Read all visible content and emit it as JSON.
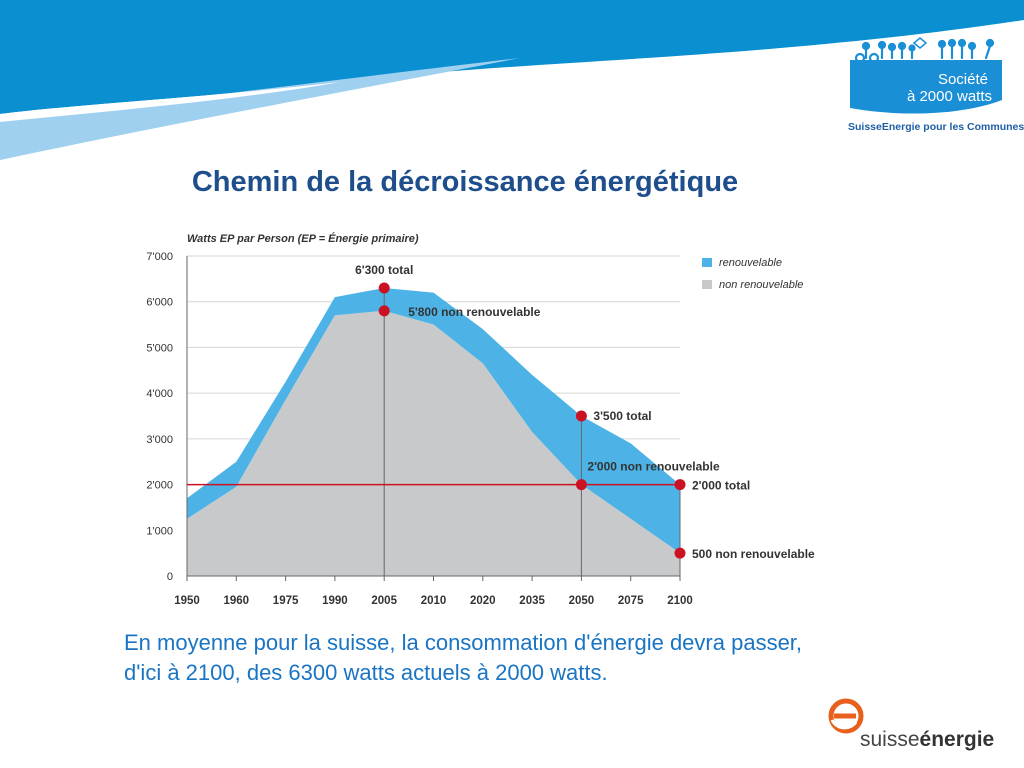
{
  "slide": {
    "title": "Chemin de la décroissance énergétique",
    "caption": "En moyenne pour la suisse, la consommation d'énergie devra passer, d'ici à 2100, des 6300 watts actuels à 2000 watts."
  },
  "logo_top": {
    "line1": "Société",
    "line2": "à 2000 watts",
    "subtitle": "SuisseEnergie pour les Communes"
  },
  "logo_bottom": {
    "part1": "suisse",
    "part2": "énergie"
  },
  "colors": {
    "renewable": "#4db3e6",
    "non_renewable": "#c8c9cb",
    "target_line": "#cc1122",
    "marker": "#cc1122",
    "title": "#1f4e8c",
    "caption": "#1a74c4"
  },
  "chart_data": {
    "type": "area",
    "title": "Watts EP par Person (EP = Énergie primaire)",
    "xlabel": "",
    "ylabel": "",
    "categories": [
      "1950",
      "1960",
      "1975",
      "1990",
      "2005",
      "2010",
      "2020",
      "2035",
      "2050",
      "2075",
      "2100"
    ],
    "ylim": [
      0,
      7000
    ],
    "yticks": [
      "0",
      "1'000",
      "2'000",
      "3'000",
      "4'000",
      "5'000",
      "6'000",
      "7'000"
    ],
    "series": [
      {
        "name": "non renouvelable",
        "values": [
          1250,
          1950,
          3850,
          5700,
          5800,
          5500,
          4650,
          3150,
          2000,
          1250,
          500
        ]
      },
      {
        "name": "renouvelable",
        "values": [
          450,
          550,
          400,
          400,
          500,
          700,
          750,
          1250,
          1500,
          1650,
          1500
        ]
      }
    ],
    "totals": [
      1700,
      2500,
      4250,
      6100,
      6300,
      6200,
      5400,
      4400,
      3500,
      2900,
      2000
    ],
    "legend_position": "top-right",
    "grid": true,
    "reference_line": {
      "y": 2000
    },
    "vertical_markers": [
      "2005",
      "2050",
      "2100"
    ],
    "annotations": [
      {
        "x": "2005",
        "y": 6300,
        "label": "6'300 total"
      },
      {
        "x": "2005",
        "y": 5800,
        "label": "5'800 non renouvelable"
      },
      {
        "x": "2050",
        "y": 3500,
        "label": "3'500 total"
      },
      {
        "x": "2050",
        "y": 2000,
        "label": "2'000 non renouvelable"
      },
      {
        "x": "2100",
        "y": 2000,
        "label": "2'000 total"
      },
      {
        "x": "2100",
        "y": 500,
        "label": "500 non renouvelable"
      }
    ]
  }
}
